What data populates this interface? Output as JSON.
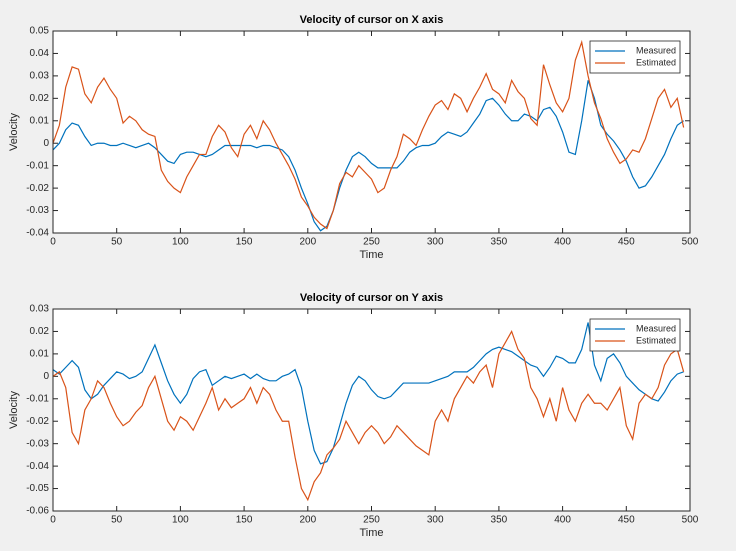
{
  "chart_data": [
    {
      "type": "line",
      "title": "Velocity of cursor on X axis",
      "xlabel": "Time",
      "ylabel": "Velocity",
      "x": [
        0,
        5,
        10,
        15,
        20,
        25,
        30,
        35,
        40,
        45,
        50,
        55,
        60,
        65,
        70,
        75,
        80,
        85,
        90,
        95,
        100,
        105,
        110,
        115,
        120,
        125,
        130,
        135,
        140,
        145,
        150,
        155,
        160,
        165,
        170,
        175,
        180,
        185,
        190,
        195,
        200,
        205,
        210,
        215,
        220,
        225,
        230,
        235,
        240,
        245,
        250,
        255,
        260,
        265,
        270,
        275,
        280,
        285,
        290,
        295,
        300,
        305,
        310,
        315,
        320,
        325,
        330,
        335,
        340,
        345,
        350,
        355,
        360,
        365,
        370,
        375,
        380,
        385,
        390,
        395,
        400,
        405,
        410,
        415,
        420,
        425,
        430,
        435,
        440,
        445,
        450,
        455,
        460,
        465,
        470,
        475,
        480,
        485,
        490,
        495
      ],
      "series": [
        {
          "name": "Measured",
          "color": "#0072bd",
          "values": [
            -0.003,
            0.0,
            0.006,
            0.009,
            0.008,
            0.003,
            -0.001,
            0.0,
            0.0,
            -0.001,
            -0.001,
            0.0,
            -0.001,
            -0.002,
            -0.001,
            0.0,
            -0.002,
            -0.005,
            -0.008,
            -0.009,
            -0.005,
            -0.004,
            -0.004,
            -0.005,
            -0.006,
            -0.005,
            -0.003,
            -0.001,
            -0.001,
            -0.001,
            -0.001,
            -0.001,
            -0.002,
            -0.001,
            -0.001,
            -0.002,
            -0.003,
            -0.006,
            -0.012,
            -0.02,
            -0.027,
            -0.035,
            -0.039,
            -0.037,
            -0.03,
            -0.02,
            -0.012,
            -0.006,
            -0.004,
            -0.006,
            -0.009,
            -0.011,
            -0.011,
            -0.011,
            -0.011,
            -0.008,
            -0.004,
            -0.002,
            -0.001,
            -0.001,
            0.0,
            0.003,
            0.005,
            0.004,
            0.003,
            0.005,
            0.009,
            0.013,
            0.019,
            0.02,
            0.017,
            0.013,
            0.01,
            0.01,
            0.013,
            0.012,
            0.01,
            0.015,
            0.016,
            0.012,
            0.005,
            -0.004,
            -0.005,
            0.01,
            0.028,
            0.02,
            0.008,
            0.004,
            0.001,
            -0.003,
            -0.008,
            -0.015,
            -0.02,
            -0.019,
            -0.015,
            -0.01,
            -0.005,
            0.002,
            0.008,
            0.01
          ]
        },
        {
          "name": "Estimated",
          "color": "#d95319",
          "values": [
            0.0,
            0.008,
            0.025,
            0.034,
            0.033,
            0.022,
            0.018,
            0.025,
            0.029,
            0.024,
            0.02,
            0.009,
            0.012,
            0.01,
            0.006,
            0.004,
            0.003,
            -0.012,
            -0.017,
            -0.02,
            -0.022,
            -0.015,
            -0.01,
            -0.005,
            -0.005,
            0.003,
            0.008,
            0.005,
            -0.002,
            -0.006,
            0.004,
            0.008,
            0.002,
            0.01,
            0.006,
            0.0,
            -0.005,
            -0.01,
            -0.016,
            -0.024,
            -0.028,
            -0.033,
            -0.036,
            -0.038,
            -0.03,
            -0.018,
            -0.013,
            -0.015,
            -0.01,
            -0.013,
            -0.016,
            -0.022,
            -0.02,
            -0.012,
            -0.006,
            0.004,
            0.002,
            -0.001,
            0.006,
            0.012,
            0.017,
            0.019,
            0.015,
            0.022,
            0.02,
            0.014,
            0.02,
            0.025,
            0.031,
            0.024,
            0.022,
            0.018,
            0.028,
            0.023,
            0.02,
            0.011,
            0.008,
            0.035,
            0.026,
            0.018,
            0.014,
            0.02,
            0.037,
            0.045,
            0.03,
            0.018,
            0.011,
            0.002,
            -0.004,
            -0.009,
            -0.007,
            -0.003,
            -0.004,
            0.002,
            0.011,
            0.02,
            0.024,
            0.016,
            0.02,
            0.007
          ]
        }
      ],
      "xlim": [
        0,
        500
      ],
      "xticks": [
        0,
        50,
        100,
        150,
        200,
        250,
        300,
        350,
        400,
        450,
        500
      ],
      "ylim": [
        -0.04,
        0.05
      ],
      "yticks": [
        -0.04,
        -0.03,
        -0.02,
        -0.01,
        0,
        0.01,
        0.02,
        0.03,
        0.04,
        0.05
      ],
      "legend": "northeast"
    },
    {
      "type": "line",
      "title": "Velocity of cursor on Y axis",
      "xlabel": "Time",
      "ylabel": "Velocity",
      "x": [
        0,
        5,
        10,
        15,
        20,
        25,
        30,
        35,
        40,
        45,
        50,
        55,
        60,
        65,
        70,
        75,
        80,
        85,
        90,
        95,
        100,
        105,
        110,
        115,
        120,
        125,
        130,
        135,
        140,
        145,
        150,
        155,
        160,
        165,
        170,
        175,
        180,
        185,
        190,
        195,
        200,
        205,
        210,
        215,
        220,
        225,
        230,
        235,
        240,
        245,
        250,
        255,
        260,
        265,
        270,
        275,
        280,
        285,
        290,
        295,
        300,
        305,
        310,
        315,
        320,
        325,
        330,
        335,
        340,
        345,
        350,
        355,
        360,
        365,
        370,
        375,
        380,
        385,
        390,
        395,
        400,
        405,
        410,
        415,
        420,
        425,
        430,
        435,
        440,
        445,
        450,
        455,
        460,
        465,
        470,
        475,
        480,
        485,
        490,
        495
      ],
      "series": [
        {
          "name": "Measured",
          "color": "#0072bd",
          "values": [
            0.003,
            0.001,
            0.004,
            0.007,
            0.004,
            -0.006,
            -0.01,
            -0.008,
            -0.004,
            -0.001,
            0.002,
            0.001,
            -0.001,
            0.0,
            0.002,
            0.008,
            0.014,
            0.006,
            -0.002,
            -0.008,
            -0.012,
            -0.008,
            -0.001,
            0.002,
            0.003,
            -0.004,
            -0.002,
            0.0,
            -0.001,
            0.0,
            0.001,
            -0.001,
            0.001,
            -0.001,
            -0.002,
            -0.002,
            0.0,
            0.001,
            0.003,
            -0.005,
            -0.02,
            -0.033,
            -0.039,
            -0.038,
            -0.032,
            -0.022,
            -0.012,
            -0.004,
            0.0,
            -0.002,
            -0.006,
            -0.009,
            -0.01,
            -0.009,
            -0.006,
            -0.003,
            -0.003,
            -0.003,
            -0.003,
            -0.003,
            -0.002,
            -0.001,
            0.0,
            0.002,
            0.002,
            0.002,
            0.004,
            0.007,
            0.01,
            0.012,
            0.013,
            0.012,
            0.011,
            0.009,
            0.007,
            0.005,
            0.004,
            0.0,
            0.004,
            0.009,
            0.008,
            0.006,
            0.006,
            0.012,
            0.024,
            0.005,
            -0.002,
            0.008,
            0.01,
            0.006,
            0.0,
            -0.003,
            -0.006,
            -0.008,
            -0.01,
            -0.011,
            -0.007,
            -0.002,
            0.001,
            0.002
          ]
        },
        {
          "name": "Estimated",
          "color": "#d95319",
          "values": [
            0.0,
            0.002,
            -0.005,
            -0.025,
            -0.03,
            -0.015,
            -0.01,
            -0.002,
            -0.005,
            -0.012,
            -0.018,
            -0.022,
            -0.02,
            -0.016,
            -0.013,
            -0.005,
            0.0,
            -0.01,
            -0.02,
            -0.024,
            -0.018,
            -0.02,
            -0.024,
            -0.018,
            -0.012,
            -0.005,
            -0.015,
            -0.01,
            -0.014,
            -0.012,
            -0.01,
            -0.005,
            -0.012,
            -0.005,
            -0.008,
            -0.015,
            -0.02,
            -0.02,
            -0.036,
            -0.05,
            -0.055,
            -0.047,
            -0.043,
            -0.035,
            -0.032,
            -0.028,
            -0.02,
            -0.025,
            -0.03,
            -0.025,
            -0.022,
            -0.025,
            -0.03,
            -0.027,
            -0.022,
            -0.025,
            -0.028,
            -0.031,
            -0.033,
            -0.035,
            -0.02,
            -0.015,
            -0.02,
            -0.01,
            -0.005,
            0.0,
            -0.003,
            0.002,
            0.005,
            -0.005,
            0.01,
            0.015,
            0.02,
            0.012,
            0.008,
            -0.005,
            -0.01,
            -0.018,
            -0.01,
            -0.02,
            -0.005,
            -0.015,
            -0.02,
            -0.012,
            -0.008,
            -0.012,
            -0.012,
            -0.015,
            -0.01,
            -0.005,
            -0.022,
            -0.028,
            -0.012,
            -0.008,
            -0.01,
            -0.005,
            0.005,
            0.01,
            0.012,
            0.002
          ]
        }
      ],
      "xlim": [
        0,
        500
      ],
      "xticks": [
        0,
        50,
        100,
        150,
        200,
        250,
        300,
        350,
        400,
        450,
        500
      ],
      "ylim": [
        -0.06,
        0.03
      ],
      "yticks": [
        -0.06,
        -0.05,
        -0.04,
        -0.03,
        -0.02,
        -0.01,
        0,
        0.01,
        0.02,
        0.03
      ],
      "legend": "northeast"
    }
  ]
}
